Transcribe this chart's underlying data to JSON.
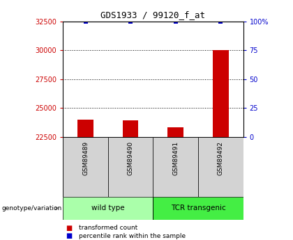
{
  "title": "GDS1933 / 99120_f_at",
  "samples": [
    "GSM89489",
    "GSM89490",
    "GSM89491",
    "GSM89492"
  ],
  "bar_values": [
    24000,
    23900,
    23300,
    30000
  ],
  "percentile_values": [
    100,
    100,
    100,
    100
  ],
  "bar_bottom": 22500,
  "ylim_left": [
    22500,
    32500
  ],
  "ylim_right": [
    0,
    100
  ],
  "yticks_left": [
    22500,
    25000,
    27500,
    30000,
    32500
  ],
  "yticks_right": [
    0,
    25,
    50,
    75,
    100
  ],
  "bar_color": "#CC0000",
  "percentile_color": "#0000CC",
  "left_tick_color": "#CC0000",
  "right_tick_color": "#0000CC",
  "sample_box_color": "#d3d3d3",
  "group_color_1": "#90EE90",
  "group_color_2": "#44DD44",
  "bar_width": 0.35,
  "legend_transformed": "transformed count",
  "legend_percentile": "percentile rank within the sample",
  "group_label": "genotype/variation",
  "groups": [
    {
      "label": "wild type",
      "start": 0,
      "end": 1,
      "color": "#AAFFAA"
    },
    {
      "label": "TCR transgenic",
      "start": 2,
      "end": 3,
      "color": "#44EE44"
    }
  ]
}
